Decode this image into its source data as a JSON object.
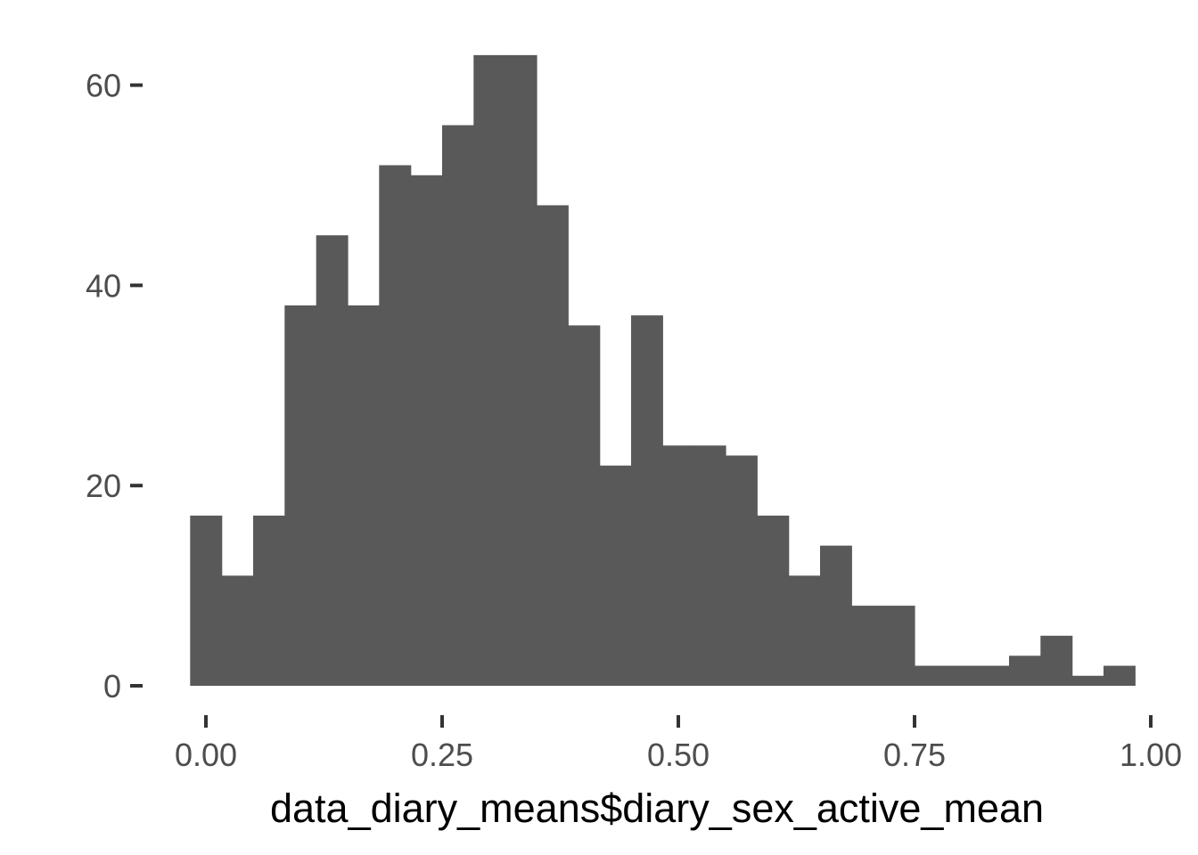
{
  "chart_data": {
    "type": "bar",
    "title": "",
    "xlabel": "data_diary_means$diary_sex_active_mean",
    "ylabel": "",
    "bar_color": "#595959",
    "tick_color": "#333333",
    "bin_width": 0.0333,
    "bins": [
      {
        "x_start": -0.0167,
        "x_end": 0.0167,
        "count": 17
      },
      {
        "x_start": 0.0167,
        "x_end": 0.05,
        "count": 11
      },
      {
        "x_start": 0.05,
        "x_end": 0.0833,
        "count": 17
      },
      {
        "x_start": 0.0833,
        "x_end": 0.1167,
        "count": 38
      },
      {
        "x_start": 0.1167,
        "x_end": 0.15,
        "count": 45
      },
      {
        "x_start": 0.15,
        "x_end": 0.1833,
        "count": 38
      },
      {
        "x_start": 0.1833,
        "x_end": 0.2167,
        "count": 52
      },
      {
        "x_start": 0.2167,
        "x_end": 0.25,
        "count": 51
      },
      {
        "x_start": 0.25,
        "x_end": 0.2833,
        "count": 56
      },
      {
        "x_start": 0.2833,
        "x_end": 0.3167,
        "count": 63
      },
      {
        "x_start": 0.3167,
        "x_end": 0.35,
        "count": 63
      },
      {
        "x_start": 0.35,
        "x_end": 0.3833,
        "count": 48
      },
      {
        "x_start": 0.3833,
        "x_end": 0.4167,
        "count": 36
      },
      {
        "x_start": 0.4167,
        "x_end": 0.45,
        "count": 22
      },
      {
        "x_start": 0.45,
        "x_end": 0.4833,
        "count": 37
      },
      {
        "x_start": 0.4833,
        "x_end": 0.5167,
        "count": 24
      },
      {
        "x_start": 0.5167,
        "x_end": 0.55,
        "count": 24
      },
      {
        "x_start": 0.55,
        "x_end": 0.5833,
        "count": 23
      },
      {
        "x_start": 0.5833,
        "x_end": 0.6167,
        "count": 17
      },
      {
        "x_start": 0.6167,
        "x_end": 0.65,
        "count": 11
      },
      {
        "x_start": 0.65,
        "x_end": 0.6833,
        "count": 14
      },
      {
        "x_start": 0.6833,
        "x_end": 0.7167,
        "count": 8
      },
      {
        "x_start": 0.7167,
        "x_end": 0.75,
        "count": 8
      },
      {
        "x_start": 0.75,
        "x_end": 0.7833,
        "count": 2
      },
      {
        "x_start": 0.7833,
        "x_end": 0.8167,
        "count": 2
      },
      {
        "x_start": 0.8167,
        "x_end": 0.85,
        "count": 2
      },
      {
        "x_start": 0.85,
        "x_end": 0.8833,
        "count": 3
      },
      {
        "x_start": 0.8833,
        "x_end": 0.9167,
        "count": 5
      },
      {
        "x_start": 0.9167,
        "x_end": 0.95,
        "count": 1
      },
      {
        "x_start": 0.95,
        "x_end": 0.9833,
        "count": 2
      }
    ],
    "xlim": [
      0,
      1
    ],
    "ylim": [
      0,
      63
    ],
    "x_ticks": [
      {
        "value": 0.0,
        "label": "0.00"
      },
      {
        "value": 0.25,
        "label": "0.25"
      },
      {
        "value": 0.5,
        "label": "0.50"
      },
      {
        "value": 0.75,
        "label": "0.75"
      },
      {
        "value": 1.0,
        "label": "1.00"
      }
    ],
    "y_ticks": [
      {
        "value": 0,
        "label": "0"
      },
      {
        "value": 20,
        "label": "20"
      },
      {
        "value": 40,
        "label": "40"
      },
      {
        "value": 60,
        "label": "60"
      }
    ],
    "grid": false,
    "legend": "none"
  }
}
